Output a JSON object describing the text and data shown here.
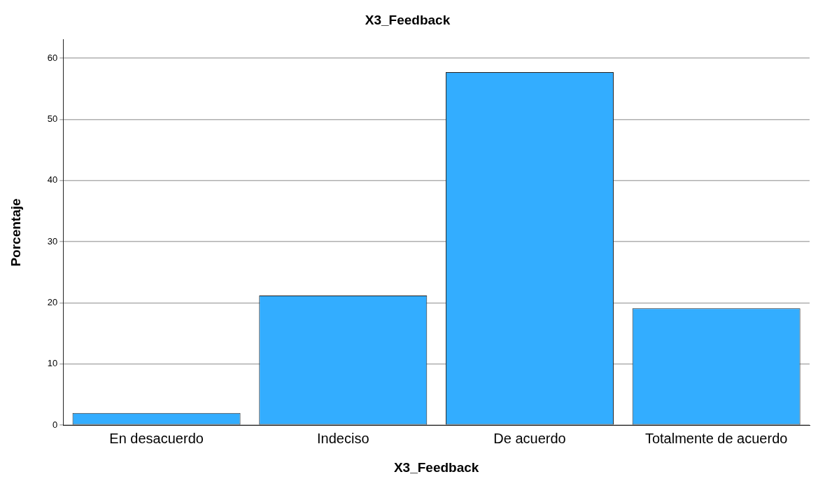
{
  "chart_data": {
    "type": "bar",
    "title": "X3_Feedback",
    "xlabel": "X3_Feedback",
    "ylabel": "Porcentaje",
    "categories": [
      "En desacuerdo",
      "Indeciso",
      "De acuerdo",
      "Totalmente de acuerdo"
    ],
    "values": [
      2.0,
      21.2,
      57.7,
      19.1
    ],
    "color": "#33adff",
    "ylim": [
      0,
      63
    ],
    "yticks": [
      0,
      10,
      20,
      30,
      40,
      50,
      60
    ],
    "grid": "y",
    "legend": false
  }
}
